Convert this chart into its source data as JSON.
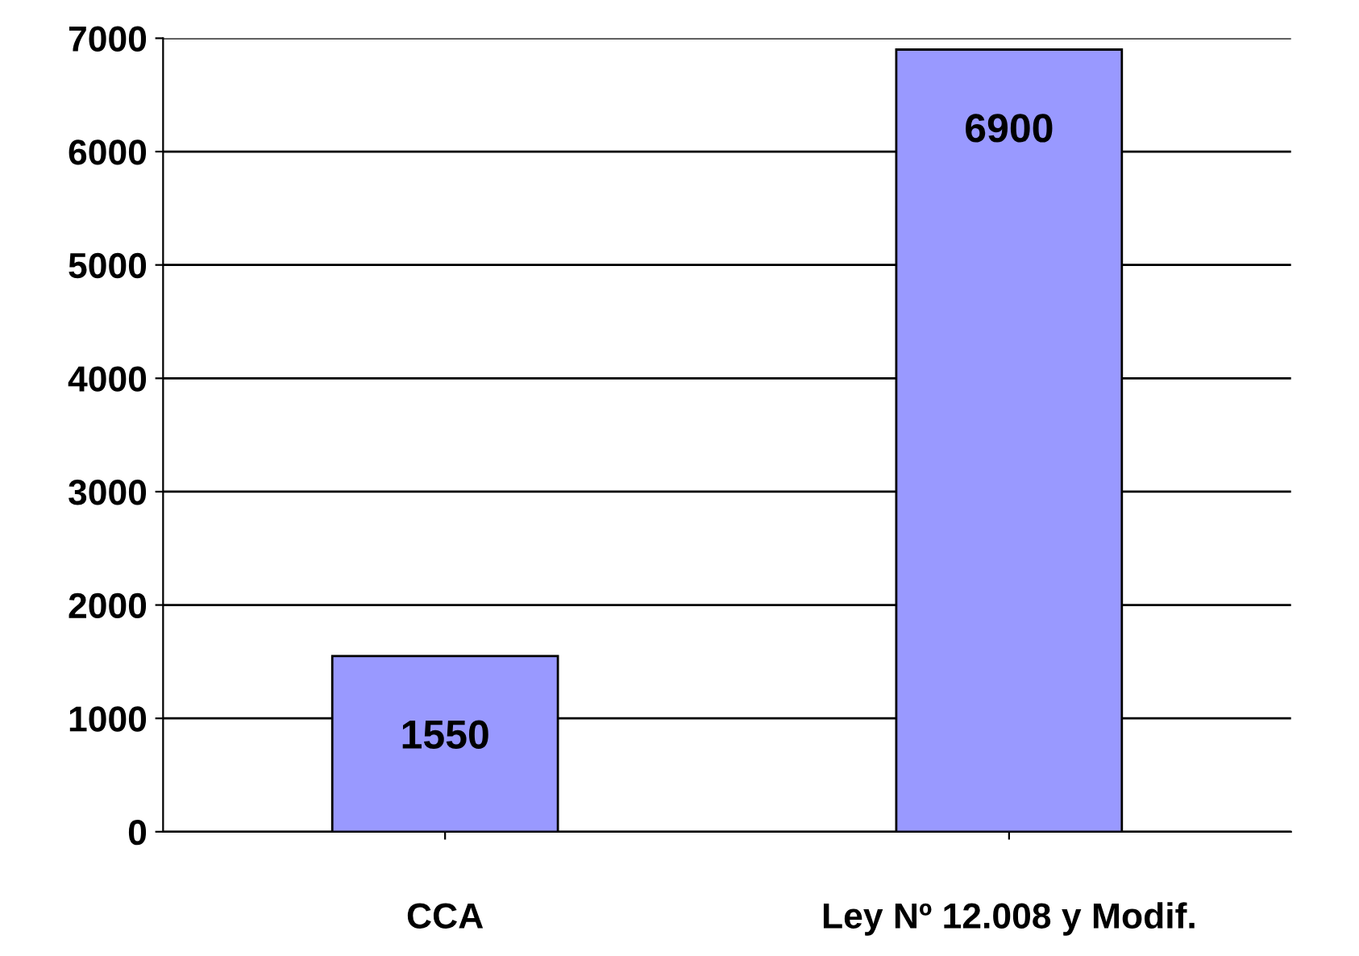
{
  "chart_data": {
    "type": "bar",
    "categories": [
      "CCA",
      "Ley Nº 12.008 y Modif."
    ],
    "values": [
      1550,
      6900
    ],
    "color": "#9999ff",
    "ylim": [
      0,
      7000
    ],
    "yticks": [
      0,
      1000,
      2000,
      3000,
      4000,
      5000,
      6000,
      7000
    ],
    "grid": "y",
    "data_labels": true
  }
}
